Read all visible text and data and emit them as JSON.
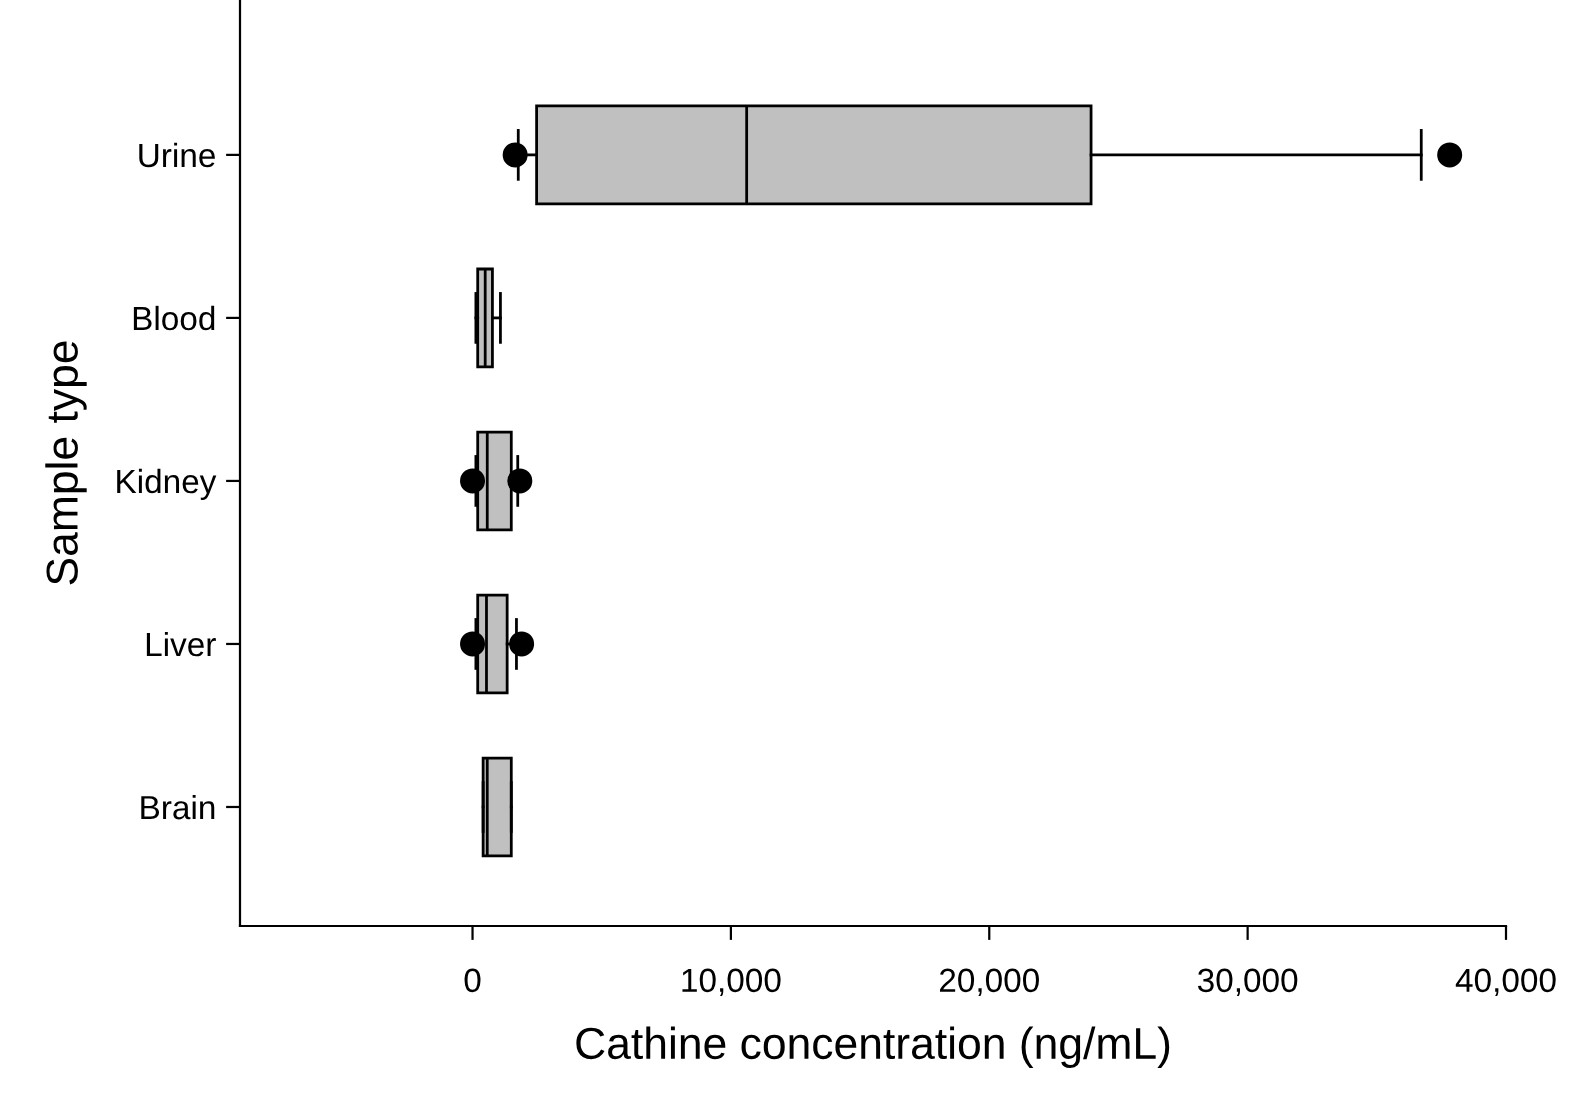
{
  "chart_data": {
    "type": "box",
    "orientation": "horizontal",
    "xlabel": "Cathine concentration (ng/mL)",
    "ylabel": "Sample type",
    "categories": [
      "Urine",
      "Blood",
      "Kidney",
      "Liver",
      "Brain"
    ],
    "series": [
      {
        "color": "#c0c0c0",
        "boxes": [
          {
            "low": 1770,
            "q1": 2480,
            "median": 10610,
            "q3": 23940,
            "high": 36720,
            "outliers": [
              1650,
              37820
            ]
          },
          {
            "low": 130,
            "q1": 200,
            "median": 490,
            "q3": 770,
            "high": 1080
          },
          {
            "low": 130,
            "q1": 200,
            "median": 570,
            "q3": 1500,
            "high": 1750,
            "outliers": [
              0,
              1830
            ]
          },
          {
            "low": 130,
            "q1": 200,
            "median": 540,
            "q3": 1340,
            "high": 1700,
            "outliers": [
              0,
              1900
            ]
          },
          {
            "low": 410,
            "q1": 410,
            "median": 570,
            "q3": 1500,
            "high": 1500
          }
        ]
      }
    ],
    "xlim": [
      -9000,
      40000
    ],
    "xticks": [
      0,
      {
        "value": 10000,
        "label": "10,000"
      },
      {
        "value": 20000,
        "label": "20,000"
      },
      {
        "value": 30000,
        "label": "30,000"
      },
      {
        "value": 40000,
        "label": "40,000"
      }
    ],
    "grid": false
  }
}
